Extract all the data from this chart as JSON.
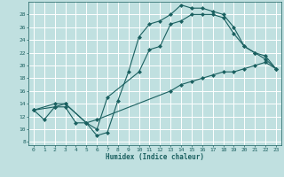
{
  "xlabel": "Humidex (Indice chaleur)",
  "bg_color": "#c0e0e0",
  "grid_color": "#ffffff",
  "line_color": "#1a6060",
  "xlim": [
    -0.5,
    23.5
  ],
  "ylim": [
    7.5,
    30
  ],
  "xticks": [
    0,
    1,
    2,
    3,
    4,
    5,
    6,
    7,
    8,
    9,
    10,
    11,
    12,
    13,
    14,
    15,
    16,
    17,
    18,
    19,
    20,
    21,
    22,
    23
  ],
  "yticks": [
    8,
    10,
    12,
    14,
    16,
    18,
    20,
    22,
    24,
    26,
    28
  ],
  "curve1_x": [
    0,
    1,
    2,
    3,
    4,
    5,
    6,
    7,
    8,
    9,
    10,
    11,
    12,
    13,
    14,
    15,
    16,
    17,
    18,
    19,
    20,
    21,
    22,
    23
  ],
  "curve1_y": [
    13,
    11.5,
    13.5,
    13.5,
    11,
    11,
    9,
    9.5,
    14.5,
    19,
    24.5,
    26.5,
    27,
    28,
    29.5,
    29,
    29,
    28.5,
    28,
    26,
    23,
    22,
    21,
    19.5
  ],
  "curve2_x": [
    0,
    2,
    3,
    5,
    6,
    7,
    10,
    11,
    12,
    13,
    14,
    15,
    16,
    17,
    18,
    19,
    20,
    21,
    22,
    23
  ],
  "curve2_y": [
    13,
    13.5,
    14,
    11,
    10,
    15,
    19,
    22.5,
    23,
    26.5,
    27,
    28,
    28,
    28,
    27.5,
    25,
    23,
    22,
    21.5,
    19.5
  ],
  "curve3_x": [
    0,
    2,
    3,
    5,
    6,
    13,
    14,
    15,
    16,
    17,
    18,
    19,
    20,
    21,
    22,
    23
  ],
  "curve3_y": [
    13,
    14,
    14,
    11,
    11.5,
    16,
    17,
    17.5,
    18,
    18.5,
    19,
    19,
    19.5,
    20,
    20.5,
    19.5
  ]
}
